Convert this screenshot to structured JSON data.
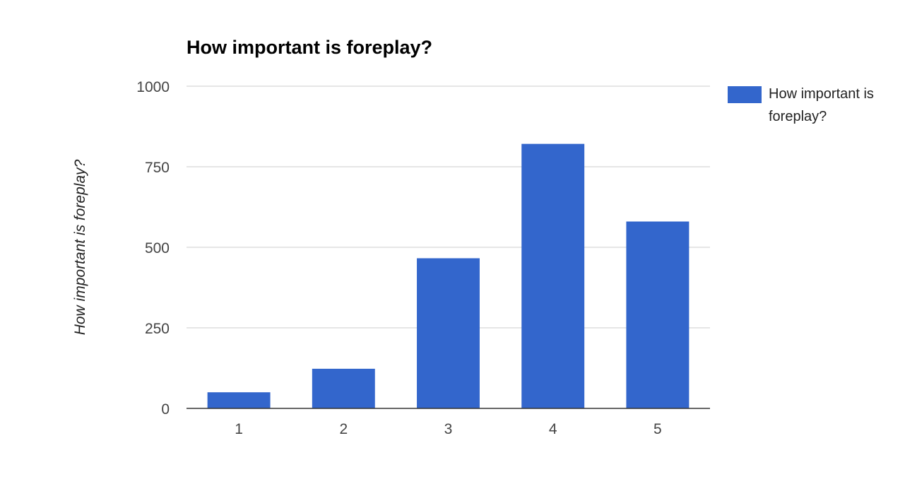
{
  "chart_data": {
    "type": "bar",
    "title": "How important is foreplay?",
    "xlabel": "",
    "ylabel": "How important is foreplay?",
    "categories": [
      "1",
      "2",
      "3",
      "4",
      "5"
    ],
    "series": [
      {
        "name": "How important is foreplay?",
        "values": [
          50,
          123,
          466,
          821,
          580
        ],
        "color": "#3366cc"
      }
    ],
    "ylim": [
      0,
      1000
    ],
    "yticks": [
      0,
      250,
      500,
      750,
      1000
    ],
    "ytick_labels": [
      "0",
      "250",
      "500",
      "750",
      "1000"
    ],
    "grid": true,
    "legend": "right",
    "colors": {
      "bar": "#3366cc",
      "grid": "#cccccc",
      "axis": "#333333",
      "tick_text": "#444444",
      "ylabel_text": "#222222"
    }
  }
}
